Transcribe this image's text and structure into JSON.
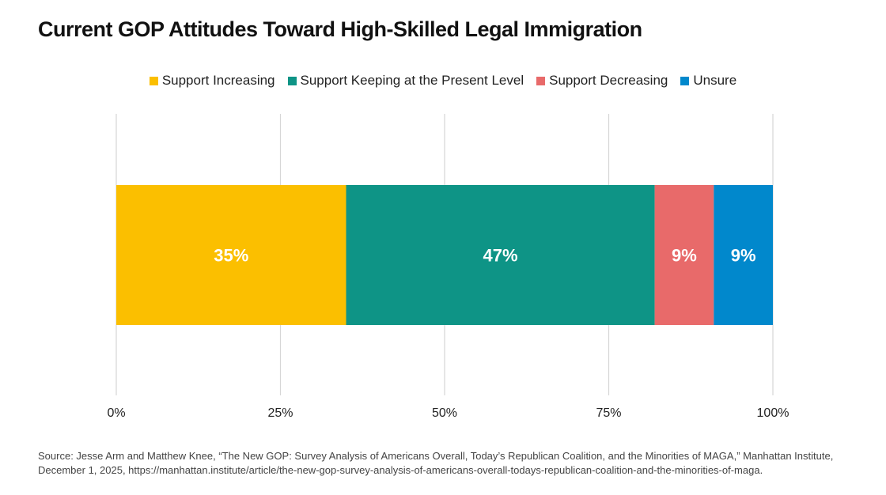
{
  "title": "Current GOP Attitudes Toward High-Skilled Legal Immigration",
  "legend": [
    {
      "label": "Support Increasing",
      "color": "#FBBF00"
    },
    {
      "label": "Support Keeping at the Present Level",
      "color": "#0E9486"
    },
    {
      "label": "Support Decreasing",
      "color": "#E86A6A"
    },
    {
      "label": "Unsure",
      "color": "#0188CC"
    }
  ],
  "chart_data": {
    "type": "bar",
    "orientation": "horizontal",
    "stacked": true,
    "title": "Current GOP Attitudes Toward High-Skilled Legal Immigration",
    "categories": [
      ""
    ],
    "series": [
      {
        "name": "Support Increasing",
        "values": [
          35
        ],
        "label": "35%",
        "color": "#FBBF00"
      },
      {
        "name": "Support Keeping at the Present Level",
        "values": [
          47
        ],
        "label": "47%",
        "color": "#0E9486"
      },
      {
        "name": "Support Decreasing",
        "values": [
          9
        ],
        "label": "9%",
        "color": "#E86A6A"
      },
      {
        "name": "Unsure",
        "values": [
          9
        ],
        "label": "9%",
        "color": "#0188CC"
      }
    ],
    "xlim": [
      0,
      100
    ],
    "xticks": [
      0,
      25,
      50,
      75,
      100
    ],
    "xtick_labels": [
      "0%",
      "25%",
      "50%",
      "75%",
      "100%"
    ],
    "grid": true,
    "legend_position": "top-center",
    "xlabel": "",
    "ylabel": ""
  },
  "source": "Source: Jesse Arm and Matthew Knee, “The New GOP: Survey Analysis of Americans Overall, Today’s Republican Coalition, and the Minorities of MAGA,” Manhattan Institute, December 1, 2025, https://manhattan.institute/article/the-new-gop-survey-analysis-of-americans-overall-todays-republican-coalition-and-the-minorities-of-maga."
}
